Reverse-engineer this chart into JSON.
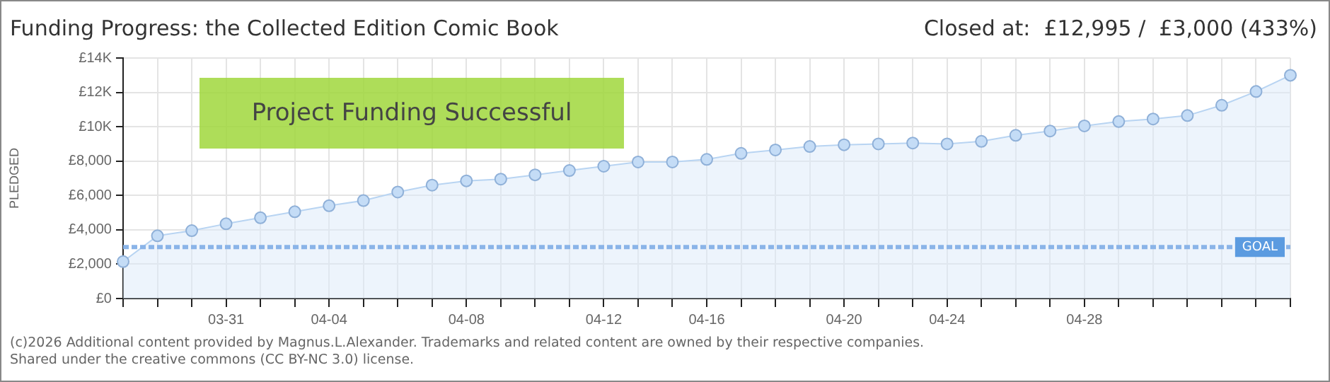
{
  "chart_data": {
    "type": "area",
    "title": "Funding Progress: the Collected Edition Comic Book",
    "subtitle": "Closed at:  £12,995 /  £3,000 (433%)",
    "ylabel": "PLEDGED",
    "categories": [
      null,
      null,
      null,
      "03-31",
      null,
      null,
      "04-04",
      null,
      null,
      null,
      "04-08",
      null,
      null,
      null,
      "04-12",
      null,
      null,
      "04-16",
      null,
      null,
      null,
      "04-20",
      null,
      null,
      "04-24",
      null,
      null,
      null,
      "04-28",
      null,
      null,
      null,
      null,
      null,
      null
    ],
    "series": [
      {
        "color": "#b8d4f2",
        "values": [
          2150,
          3650,
          3950,
          4350,
          4700,
          5050,
          5400,
          5700,
          6200,
          6600,
          6850,
          6950,
          7200,
          7450,
          7700,
          7950,
          7950,
          8100,
          8450,
          8650,
          8850,
          8950,
          9000,
          9050,
          9000,
          9150,
          9500,
          9750,
          10050,
          10300,
          10450,
          10650,
          11250,
          12050,
          12995
        ]
      }
    ],
    "ylim": [
      0,
      14000
    ],
    "yticks": [
      {
        "value": 0,
        "label": "£0"
      },
      {
        "value": 2000,
        "label": "£2,000"
      },
      {
        "value": 4000,
        "label": "£4,000"
      },
      {
        "value": 6000,
        "label": "£6,000"
      },
      {
        "value": 8000,
        "label": "£8,000"
      },
      {
        "value": 10000,
        "label": "£10K"
      },
      {
        "value": 12000,
        "label": "£12K"
      },
      {
        "value": 14000,
        "label": "£14K"
      }
    ],
    "grid": true,
    "marker": "circle",
    "legend": false,
    "ref_lines": [
      {
        "axis": "y",
        "value": 3000,
        "label": "GOAL",
        "color": "#8ab4e8",
        "line_style": "dashed"
      }
    ],
    "annotations": [
      "Project Funding Successful",
      "(c)2026 Additional content provided by Magnus.L.Alexander. Trademarks and related content are owned by their respective companies.",
      "Shared under the creative commons (CC BY-NC 3.0) license."
    ]
  }
}
